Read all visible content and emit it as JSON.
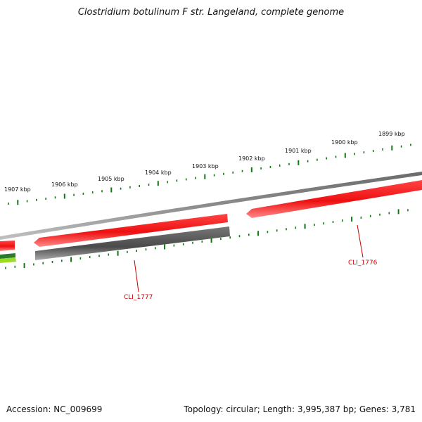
{
  "title": "Clostridium botulinum F str. Langeland, complete genome",
  "accession": "Accession: NC_009699",
  "summary": "Topology: circular; Length: 3,995,387 bp; Genes: 3,781",
  "colors": {
    "forward_gene": "#ee1111",
    "reverse_gene": "#555555",
    "backbone": "#8a8a8a",
    "ticks": "#117711",
    "gene_label": "#cc0000",
    "green_gene": "#2c7a2c",
    "lime_gene": "#99dd22"
  },
  "outer_ticks": [
    {
      "label": "1907 kbp"
    },
    {
      "label": "1906 kbp"
    },
    {
      "label": "1905 kbp"
    },
    {
      "label": "1904 kbp"
    },
    {
      "label": "1903 kbp"
    },
    {
      "label": "1902 kbp"
    },
    {
      "label": "1901 kbp"
    },
    {
      "label": "1900 kbp"
    },
    {
      "label": "1899 kbp"
    }
  ],
  "genes": [
    {
      "label": "CLI_1776"
    },
    {
      "label": "CLI_1777"
    }
  ]
}
